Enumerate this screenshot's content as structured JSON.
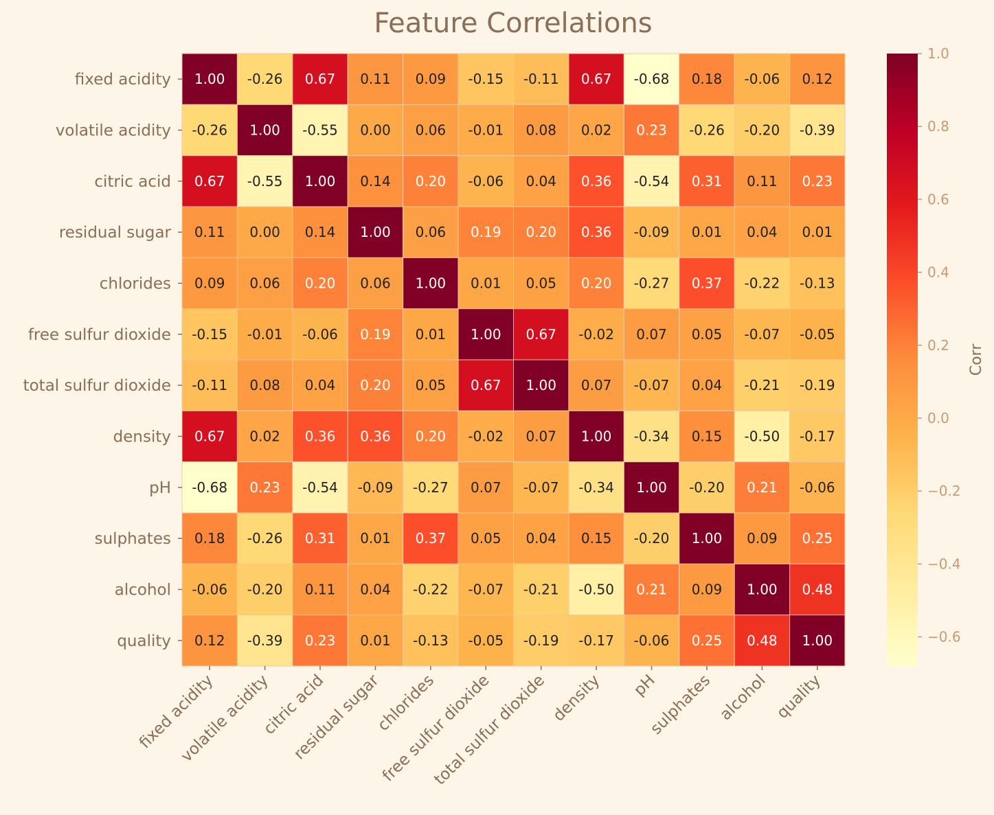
{
  "chart_data": {
    "type": "heatmap",
    "title": "Feature Correlations",
    "x_categories": [
      "fixed acidity",
      "volatile acidity",
      "citric acid",
      "residual sugar",
      "chlorides",
      "free sulfur dioxide",
      "total sulfur dioxide",
      "density",
      "pH",
      "sulphates",
      "alcohol",
      "quality"
    ],
    "y_categories": [
      "fixed acidity",
      "volatile acidity",
      "citric acid",
      "residual sugar",
      "chlorides",
      "free sulfur dioxide",
      "total sulfur dioxide",
      "density",
      "pH",
      "sulphates",
      "alcohol",
      "quality"
    ],
    "values": [
      [
        1.0,
        -0.26,
        0.67,
        0.11,
        0.09,
        -0.15,
        -0.11,
        0.67,
        -0.68,
        0.18,
        -0.06,
        0.12
      ],
      [
        -0.26,
        1.0,
        -0.55,
        0.0,
        0.06,
        -0.01,
        0.08,
        0.02,
        0.23,
        -0.26,
        -0.2,
        -0.39
      ],
      [
        0.67,
        -0.55,
        1.0,
        0.14,
        0.2,
        -0.06,
        0.04,
        0.36,
        -0.54,
        0.31,
        0.11,
        0.23
      ],
      [
        0.11,
        0.0,
        0.14,
        1.0,
        0.06,
        0.19,
        0.2,
        0.36,
        -0.09,
        0.01,
        0.04,
        0.01
      ],
      [
        0.09,
        0.06,
        0.2,
        0.06,
        1.0,
        0.01,
        0.05,
        0.2,
        -0.27,
        0.37,
        -0.22,
        -0.13
      ],
      [
        -0.15,
        -0.01,
        -0.06,
        0.19,
        0.01,
        1.0,
        0.67,
        -0.02,
        0.07,
        0.05,
        -0.07,
        -0.05
      ],
      [
        -0.11,
        0.08,
        0.04,
        0.2,
        0.05,
        0.67,
        1.0,
        0.07,
        -0.07,
        0.04,
        -0.21,
        -0.19
      ],
      [
        0.67,
        0.02,
        0.36,
        0.36,
        0.2,
        -0.02,
        0.07,
        1.0,
        -0.34,
        0.15,
        -0.5,
        -0.17
      ],
      [
        -0.68,
        0.23,
        -0.54,
        -0.09,
        -0.27,
        0.07,
        -0.07,
        -0.34,
        1.0,
        -0.2,
        0.21,
        -0.06
      ],
      [
        0.18,
        -0.26,
        0.31,
        0.01,
        0.37,
        0.05,
        0.04,
        0.15,
        -0.2,
        1.0,
        0.09,
        0.25
      ],
      [
        -0.06,
        -0.2,
        0.11,
        0.04,
        -0.22,
        -0.07,
        -0.21,
        -0.5,
        0.21,
        0.09,
        1.0,
        0.48
      ],
      [
        0.12,
        -0.39,
        0.23,
        0.01,
        -0.13,
        -0.05,
        -0.19,
        -0.17,
        -0.06,
        0.25,
        0.48,
        1.0
      ]
    ],
    "value_format": "2 decimals",
    "colormap": "YlOrRd",
    "vmin": -0.68,
    "vmax": 1.0,
    "colorbar": {
      "label": "Corr",
      "ticks": [
        1.0,
        0.8,
        0.6,
        0.4,
        0.2,
        0.0,
        -0.2,
        -0.4,
        -0.6
      ],
      "tick_labels": [
        "1.0",
        "0.8",
        "0.6",
        "0.4",
        "0.2",
        "0.0",
        "−0.2",
        "−0.4",
        "−0.6"
      ],
      "position": "right"
    },
    "xtick_rotation_deg": 45,
    "colors": {
      "background": "#FDF5E8",
      "text": "#8B6E55",
      "colorbar_ticks": "#C99A6E",
      "cell_border": "#F2C6A0",
      "annotation_dark": "#222222",
      "annotation_light": "#FFFFFF"
    }
  }
}
